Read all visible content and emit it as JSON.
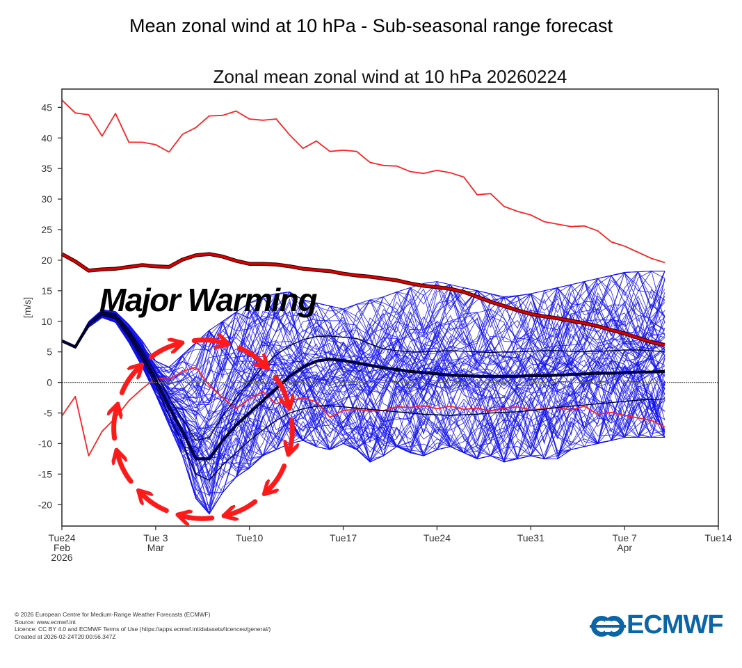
{
  "page": {
    "title": "Mean zonal wind at 10 hPa - Sub-seasonal range forecast"
  },
  "footer": {
    "copyright": "© 2026 European Centre for Medium-Range Weather Forecasts (ECMWF)",
    "source": "Source: www.ecmwf.int",
    "licence": "Licence: CC BY 4.0 and ECMWF Terms of Use (https://apps.ecmwf.int/datasets/licences/general/)",
    "created": "Created at 2026-02-24T20:00:56.347Z"
  },
  "logo": {
    "text": "ECMWF",
    "color": "#0b65a6"
  },
  "chart_data": {
    "type": "line",
    "title": "Zonal mean zonal wind at 10 hPa 20260224",
    "xlabel": "",
    "ylabel": "[m/s]",
    "annotation": "Major Warming",
    "start_date": "2026-02-24",
    "x_unit": "days since start",
    "xlim": [
      0,
      49
    ],
    "ylim": [
      -23.5,
      48
    ],
    "grid": false,
    "zero_line": true,
    "yticks": [
      -20,
      -15,
      -10,
      -5,
      0,
      5,
      10,
      15,
      20,
      25,
      30,
      35,
      40,
      45
    ],
    "xticks": [
      {
        "day": 0,
        "lines": [
          "Tue24",
          "Feb",
          "2026"
        ]
      },
      {
        "day": 7,
        "lines": [
          "Tue 3",
          "Mar"
        ]
      },
      {
        "day": 14,
        "lines": [
          "Tue10"
        ]
      },
      {
        "day": 21,
        "lines": [
          "Tue17"
        ]
      },
      {
        "day": 28,
        "lines": [
          "Tue24"
        ]
      },
      {
        "day": 35,
        "lines": [
          "Tue31"
        ]
      },
      {
        "day": 42,
        "lines": [
          "Tue 7",
          "Apr"
        ]
      },
      {
        "day": 49,
        "lines": [
          "Tue14"
        ]
      }
    ],
    "colors": {
      "members": "#1010ee",
      "ensemble_mean": "#000066",
      "percentiles": "#000033",
      "extremes": "#ff2020",
      "climatology": "#dd0000",
      "annotation_arrows": "#ff1a1a"
    },
    "series": [
      {
        "name": "Historical maximum",
        "style": "extreme",
        "values": [
          46.2,
          44.1,
          43.8,
          40.3,
          44.0,
          39.3,
          39.3,
          38.9,
          37.7,
          40.6,
          41.7,
          43.6,
          43.7,
          44.4,
          43.1,
          42.9,
          43.1,
          40.5,
          38.3,
          39.5,
          37.8,
          38.0,
          37.8,
          36.0,
          35.5,
          35.4,
          34.5,
          34.2,
          34.7,
          34.3,
          33.6,
          30.7,
          30.9,
          28.8,
          28.0,
          27.4,
          26.3,
          25.9,
          25.5,
          25.6,
          24.8,
          23.0,
          22.3,
          21.3,
          20.3,
          19.6
        ]
      },
      {
        "name": "Climatological mean",
        "style": "climatology",
        "values": [
          21.0,
          19.8,
          18.3,
          18.5,
          18.6,
          18.9,
          19.2,
          19.0,
          18.9,
          20.1,
          20.8,
          21.0,
          20.6,
          19.9,
          19.4,
          19.4,
          19.3,
          19.0,
          18.6,
          18.4,
          18.2,
          17.8,
          17.5,
          17.3,
          17.0,
          16.7,
          16.2,
          15.8,
          15.6,
          15.3,
          14.8,
          14.0,
          13.2,
          12.5,
          11.8,
          11.2,
          10.8,
          10.5,
          10.1,
          9.7,
          9.2,
          8.6,
          8.0,
          7.3,
          6.6,
          6.1
        ]
      },
      {
        "name": "Historical minimum",
        "style": "extreme",
        "values": [
          -5.5,
          -2.3,
          -12.0,
          -8.0,
          -5.8,
          -3.0,
          -1.0,
          0.7,
          0.5,
          1.8,
          2.5,
          -0.5,
          -2.5,
          -4.3,
          -2.7,
          -1.5,
          -3.5,
          -3.0,
          -2.5,
          -3.2,
          -5.7,
          -4.6,
          -4.4,
          -4.7,
          -4.6,
          -4.0,
          -4.1,
          -3.8,
          -4.3,
          -3.9,
          -4.4,
          -4.2,
          -4.7,
          -4.2,
          -4.0,
          -4.5,
          -4.3,
          -4.1,
          -4.5,
          -3.9,
          -5.2,
          -4.9,
          -5.4,
          -5.8,
          -6.2,
          -7.3
        ]
      },
      {
        "name": "Ensemble mean",
        "style": "mean",
        "values": [
          6.8,
          5.8,
          9.5,
          11.3,
          10.8,
          8.0,
          4.5,
          0.5,
          -4.0,
          -8.0,
          -12.5,
          -12.5,
          -9.5,
          -7.0,
          -5.0,
          -3.0,
          -1.0,
          1.0,
          2.5,
          3.5,
          3.8,
          3.6,
          3.2,
          2.8,
          2.4,
          2.1,
          1.8,
          1.6,
          1.4,
          1.2,
          1.1,
          1.0,
          1.0,
          1.0,
          1.0,
          1.1,
          1.1,
          1.2,
          1.3,
          1.4,
          1.5,
          1.5,
          1.6,
          1.7,
          1.7,
          1.8
        ]
      },
      {
        "name": "Ensemble upper percentile",
        "style": "percentile",
        "values": [
          6.9,
          5.9,
          9.7,
          11.6,
          11.2,
          8.6,
          5.3,
          1.5,
          -2.5,
          -6.0,
          -9.5,
          -9.0,
          -5.5,
          -2.5,
          0.0,
          2.5,
          4.5,
          6.0,
          7.0,
          7.5,
          7.6,
          7.4,
          7.2,
          6.3,
          5.5,
          5.2,
          5.0,
          5.0,
          5.1,
          5.2,
          5.1,
          5.0,
          4.9,
          5.0,
          5.0,
          5.1,
          5.2,
          5.2,
          5.1,
          5.0,
          5.1,
          5.2,
          5.3,
          5.3,
          5.2,
          5.0
        ]
      },
      {
        "name": "Ensemble lower percentile",
        "style": "percentile",
        "values": [
          6.7,
          5.7,
          9.3,
          11.0,
          10.4,
          7.4,
          3.7,
          -0.5,
          -5.5,
          -10.0,
          -15.0,
          -16.0,
          -13.5,
          -11.5,
          -9.5,
          -7.8,
          -6.2,
          -5.0,
          -4.3,
          -3.9,
          -3.8,
          -4.0,
          -4.2,
          -4.4,
          -4.6,
          -4.8,
          -5.0,
          -5.2,
          -5.3,
          -5.4,
          -5.3,
          -5.2,
          -5.0,
          -4.9,
          -4.8,
          -4.6,
          -4.4,
          -4.1,
          -3.9,
          -3.7,
          -3.5,
          -3.3,
          -3.1,
          -2.9,
          -2.8,
          -2.7
        ]
      }
    ],
    "ensemble_members": {
      "count": 101,
      "spread_low": [
        6.6,
        5.6,
        9.0,
        10.6,
        9.8,
        6.5,
        2.5,
        -2.0,
        -7.0,
        -12.0,
        -19.0,
        -21.5,
        -18.0,
        -15.5,
        -14.0,
        -12.0,
        -11.0,
        -10.0,
        -9.5,
        -10.5,
        -11.0,
        -10.0,
        -11.0,
        -13.0,
        -12.0,
        -10.5,
        -11.5,
        -12.0,
        -11.0,
        -10.5,
        -11.5,
        -12.5,
        -12.0,
        -13.0,
        -12.5,
        -12.0,
        -12.5,
        -12.5,
        -11.0,
        -10.5,
        -10.0,
        -9.5,
        -9.0,
        -9.0,
        -9.0,
        -9.0
      ],
      "spread_high": [
        7.0,
        6.0,
        10.0,
        11.9,
        11.6,
        9.5,
        6.8,
        3.5,
        2.5,
        4.5,
        6.5,
        8.5,
        10.0,
        11.5,
        13.0,
        14.0,
        14.5,
        14.8,
        13.5,
        13.0,
        12.5,
        12.0,
        12.8,
        13.5,
        14.0,
        14.8,
        15.5,
        16.2,
        16.5,
        16.0,
        15.5,
        15.0,
        14.5,
        14.0,
        14.2,
        14.5,
        15.0,
        15.5,
        16.0,
        16.5,
        17.0,
        17.5,
        18.0,
        18.1,
        18.2,
        18.2
      ]
    },
    "annotation_arrow_circle": {
      "arrow_count": 12,
      "direction": "clockwise"
    }
  }
}
